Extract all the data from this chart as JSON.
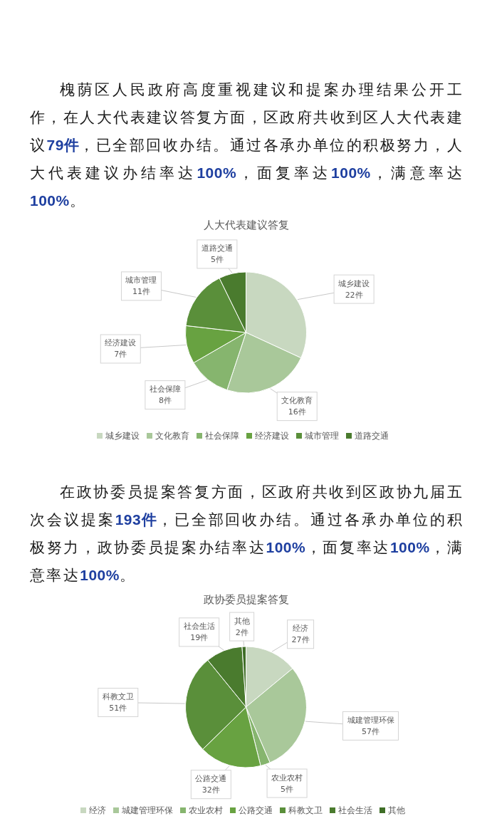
{
  "chart_data": [
    {
      "type": "pie",
      "title": "人大代表建议答复",
      "annotations": [
        "槐荫区人民政府高度重视建议和提案办理结果公开工作，在人大代表建议答复方面，区政府共收到区人大代表建议79件，已全部回收办结。通过各承办单位的积极努力，人大代表建议办结率达100%，面复率达100%，满意率达100%。"
      ],
      "categories": [
        "城乡建设",
        "文化教育",
        "社会保障",
        "经济建设",
        "城市管理",
        "道路交通"
      ],
      "values": [
        22,
        16,
        8,
        7,
        11,
        5
      ],
      "value_labels": [
        "22件",
        "16件",
        "8件",
        "7件",
        "11件",
        "5件"
      ],
      "colors": [
        "#c8d8c0",
        "#a9c89a",
        "#86b56e",
        "#68a241",
        "#5a8f3a",
        "#4a7b2e"
      ],
      "legend": "bottom"
    },
    {
      "type": "pie",
      "title": "政协委员提案答复",
      "annotations": [
        "在政协委员提案答复方面，区政府共收到区政协九届五次会议提案193件，已全部回收办结。通过各承办单位的积极努力，政协委员提案办结率达100%，面复率达100%，满意率达100%。"
      ],
      "categories": [
        "经济",
        "城建管理环保",
        "农业农村",
        "公路交通",
        "科教文卫",
        "社会生活",
        "其他"
      ],
      "values": [
        27,
        57,
        5,
        32,
        51,
        19,
        2
      ],
      "value_labels": [
        "27件",
        "57件",
        "5件",
        "32件",
        "51件",
        "19件",
        "2件"
      ],
      "colors": [
        "#c8d8c0",
        "#a9c89a",
        "#86b56e",
        "#68a241",
        "#5a8f3a",
        "#4a7b2e",
        "#3f6e27"
      ],
      "legend": "bottom"
    }
  ]
}
